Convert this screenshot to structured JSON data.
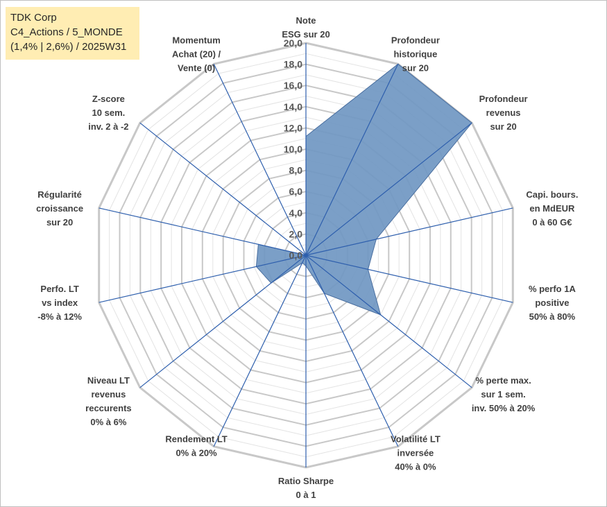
{
  "info_box": {
    "line1": "TDK Corp",
    "line2": "C4_Actions / 5_MONDE",
    "line3": "(1,4% | 2,6%) / 2025W31"
  },
  "colors": {
    "fill": "#7097c2",
    "stroke": "#4a6fa0",
    "spoke": "#2e5fad",
    "grid_major": "#c8c8c8",
    "grid_minor": "#e3e3e3",
    "info_bg": "#ffedb3"
  },
  "chart_data": {
    "type": "radar",
    "title": "",
    "rmin": 0,
    "rmax": 20,
    "ticks": [
      "0,0",
      "2,0",
      "4,0",
      "6,0",
      "8,0",
      "10,0",
      "12,0",
      "14,0",
      "16,0",
      "18,0",
      "20,0"
    ],
    "grid_major_step": 2,
    "grid_minor_step": 1,
    "axes": [
      {
        "label": [
          "Note",
          "ESG sur 20"
        ],
        "value": 11.2
      },
      {
        "label": [
          "Profondeur",
          "historique",
          "sur 20"
        ],
        "value": 20
      },
      {
        "label": [
          "Profondeur",
          "revenus",
          "sur 20"
        ],
        "value": 20
      },
      {
        "label": [
          "Capi. bours.",
          "en MdEUR",
          "0 à 60 G€"
        ],
        "value": 6.8
      },
      {
        "label": [
          "% perfo 1A",
          "positive",
          "50% à 80%"
        ],
        "value": 6.0
      },
      {
        "label": [
          "% perte max.",
          "sur 1 sem.",
          "inv. 50% à 20%"
        ],
        "value": 9.0
      },
      {
        "label": [
          "Volatilité LT",
          "inversée",
          "40% à 0%"
        ],
        "value": 4.0
      },
      {
        "label": [
          "Ratio Sharpe",
          "0 à 1"
        ],
        "value": 1.0
      },
      {
        "label": [
          "Rendement LT",
          "0% à 20%"
        ],
        "value": 0.8
      },
      {
        "label": [
          "Niveau LT",
          "revenus",
          "reccurents",
          "0% à 6%"
        ],
        "value": 4.2
      },
      {
        "label": [
          "Perfo. LT",
          "vs index",
          "-8% à 12%"
        ],
        "value": 4.8
      },
      {
        "label": [
          "Régularité",
          "croissance",
          "sur 20"
        ],
        "value": 4.6
      },
      {
        "label": [
          "Z-score",
          "10 sem.",
          "inv. 2 à -2"
        ],
        "value": 0.0
      },
      {
        "label": [
          "Momentum",
          "Achat (20) /",
          "Vente (0)"
        ],
        "value": 0.0
      }
    ]
  }
}
